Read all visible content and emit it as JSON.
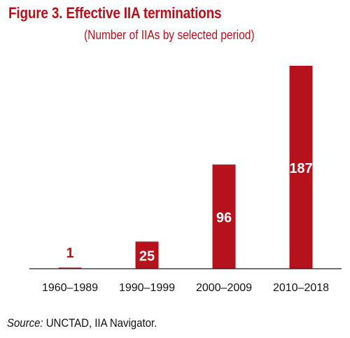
{
  "colors": {
    "accent": "#b5121b",
    "axis": "#222222",
    "text": "#111111"
  },
  "header": {
    "title": "Figure 3. Effective IIA terminations",
    "subtitle": "(Number of IIAs by selected period)"
  },
  "source": {
    "label": "Source:",
    "text": " UNCTAD, IIA Navigator."
  },
  "chart_data": {
    "type": "bar",
    "categories": [
      "1960–1989",
      "1990–1999",
      "2000–2009",
      "2010–2018"
    ],
    "values": [
      1,
      25,
      96,
      187
    ],
    "data_labels": [
      "1",
      "25",
      "96",
      "187"
    ],
    "title": "Figure 3. Effective IIA terminations",
    "subtitle": "(Number of IIAs by selected period)",
    "xlabel": "",
    "ylabel": "",
    "ylim": [
      0,
      187
    ],
    "grid": false,
    "legend": "none"
  }
}
